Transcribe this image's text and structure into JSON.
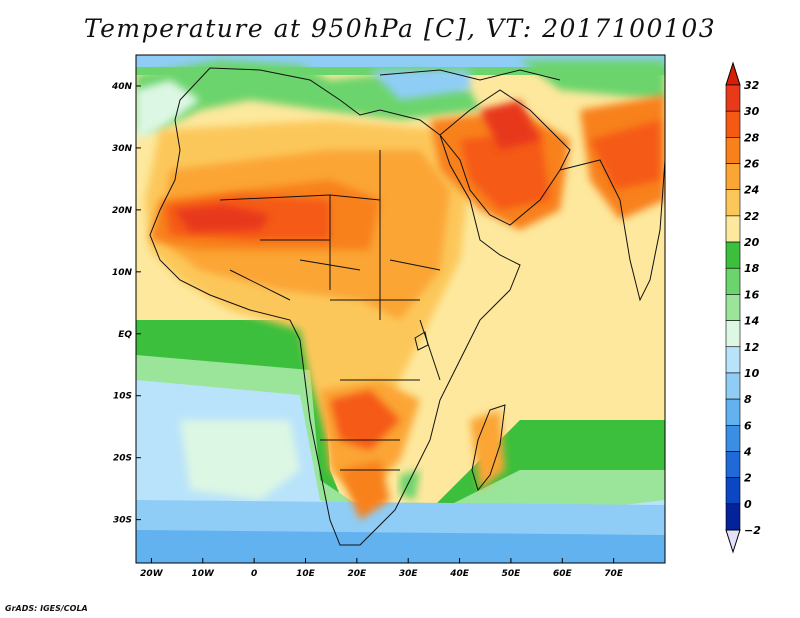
{
  "title": "Temperature at 950hPa [C], VT: 2017100103",
  "footer": "GrADS: IGES/COLA",
  "map": {
    "lon_range": [
      -23,
      80
    ],
    "lat_range": [
      -37,
      45
    ],
    "lon_ticks": [
      {
        "value": -20,
        "label": "20W"
      },
      {
        "value": -10,
        "label": "10W"
      },
      {
        "value": 0,
        "label": "0"
      },
      {
        "value": 10,
        "label": "10E"
      },
      {
        "value": 20,
        "label": "20E"
      },
      {
        "value": 30,
        "label": "30E"
      },
      {
        "value": 40,
        "label": "40E"
      },
      {
        "value": 50,
        "label": "50E"
      },
      {
        "value": 60,
        "label": "60E"
      },
      {
        "value": 70,
        "label": "70E"
      }
    ],
    "lat_ticks": [
      {
        "value": 40,
        "label": "40N"
      },
      {
        "value": 30,
        "label": "30N"
      },
      {
        "value": 20,
        "label": "20N"
      },
      {
        "value": 10,
        "label": "10N"
      },
      {
        "value": 0,
        "label": "EQ"
      },
      {
        "value": -10,
        "label": "10S"
      },
      {
        "value": -20,
        "label": "20S"
      },
      {
        "value": -30,
        "label": "30S"
      }
    ]
  },
  "colorbar": {
    "levels": [
      32,
      30,
      28,
      26,
      24,
      22,
      20,
      18,
      16,
      14,
      12,
      10,
      8,
      6,
      4,
      2,
      0,
      -2
    ],
    "labels": [
      "32",
      "30",
      "28",
      "26",
      "24",
      "22",
      "20",
      "18",
      "16",
      "14",
      "12",
      "10",
      "8",
      "6",
      "4",
      "2",
      "0",
      "−2"
    ],
    "top_color": "#d81e05",
    "bottom_color": "#e4e2fb",
    "colors": [
      "#e8391a",
      "#f55a14",
      "#f8811c",
      "#fba535",
      "#fcc75a",
      "#fde89d",
      "#3cbf3c",
      "#6cd46c",
      "#9ae59a",
      "#dcf7e4",
      "#b9e3fb",
      "#8fcdf6",
      "#63b2f0",
      "#3a8fe5",
      "#1f6ad8",
      "#0c46c4",
      "#04239a"
    ]
  }
}
